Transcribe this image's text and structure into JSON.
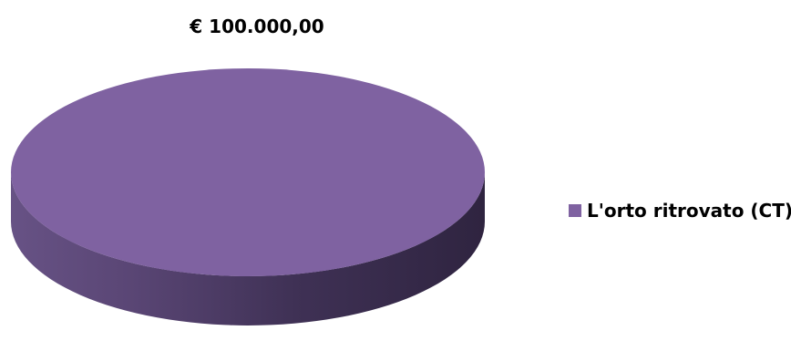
{
  "chart_data": {
    "type": "pie",
    "title": "",
    "slices": [
      {
        "label": "L'orto ritrovato (CT)",
        "value": 100000.0,
        "value_label": "€ 100.000,00",
        "color": "#7f62a1"
      }
    ],
    "legend_position": "right",
    "style": "3d"
  }
}
